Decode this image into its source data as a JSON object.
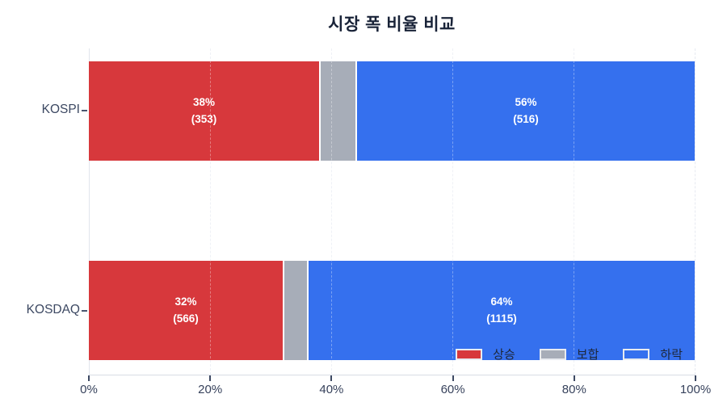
{
  "chart_data": {
    "type": "bar",
    "orientation": "horizontal-stacked",
    "title": "시장 폭 비율 비교",
    "categories": [
      "KOSPI",
      "KOSDAQ"
    ],
    "series": [
      {
        "name": "상승",
        "color": "#d7383c",
        "values_pct": [
          38,
          32
        ],
        "counts": [
          353,
          566
        ]
      },
      {
        "name": "보합",
        "color": "#a7adb8",
        "values_pct": [
          6,
          4
        ]
      },
      {
        "name": "하락",
        "color": "#3570ee",
        "values_pct": [
          56,
          64
        ],
        "counts": [
          516,
          1115
        ]
      }
    ],
    "x_ticks": [
      "0%",
      "20%",
      "40%",
      "60%",
      "80%",
      "100%"
    ],
    "x_range": [
      0,
      100
    ],
    "grid": "vertical-dashed",
    "legend_position": "inside-bottom-right"
  },
  "title": "시장 폭 비율 비교",
  "rows": [
    {
      "label": "KOSPI",
      "segments": [
        {
          "name": "상승",
          "w": "38%",
          "color": "#d7383c",
          "pct": "38%",
          "count": "(353)"
        },
        {
          "name": "보합",
          "w": "6%",
          "color": "#a7adb8"
        },
        {
          "name": "하락",
          "w": "56%",
          "color": "#3570ee",
          "pct": "56%",
          "count": "(516)"
        }
      ]
    },
    {
      "label": "KOSDAQ",
      "segments": [
        {
          "name": "상승",
          "w": "32%",
          "color": "#d7383c",
          "pct": "32%",
          "count": "(566)"
        },
        {
          "name": "보합",
          "w": "4%",
          "color": "#a7adb8"
        },
        {
          "name": "하락",
          "w": "64%",
          "color": "#3570ee",
          "pct": "64%",
          "count": "(1115)"
        }
      ]
    }
  ],
  "x_axis": {
    "ticks": [
      "0%",
      "20%",
      "40%",
      "60%",
      "80%",
      "100%"
    ]
  },
  "legend": {
    "items": [
      {
        "label": "상승",
        "color": "#d7383c"
      },
      {
        "label": "보합",
        "color": "#a7adb8"
      },
      {
        "label": "하락",
        "color": "#3570ee"
      }
    ]
  },
  "colors": {
    "up_red": "#d7383c",
    "flat_gray": "#a7adb8",
    "down_blue": "#3570ee",
    "title_text": "#192338",
    "axis_text": "#37425c",
    "gridline": "#e7eaf1"
  }
}
